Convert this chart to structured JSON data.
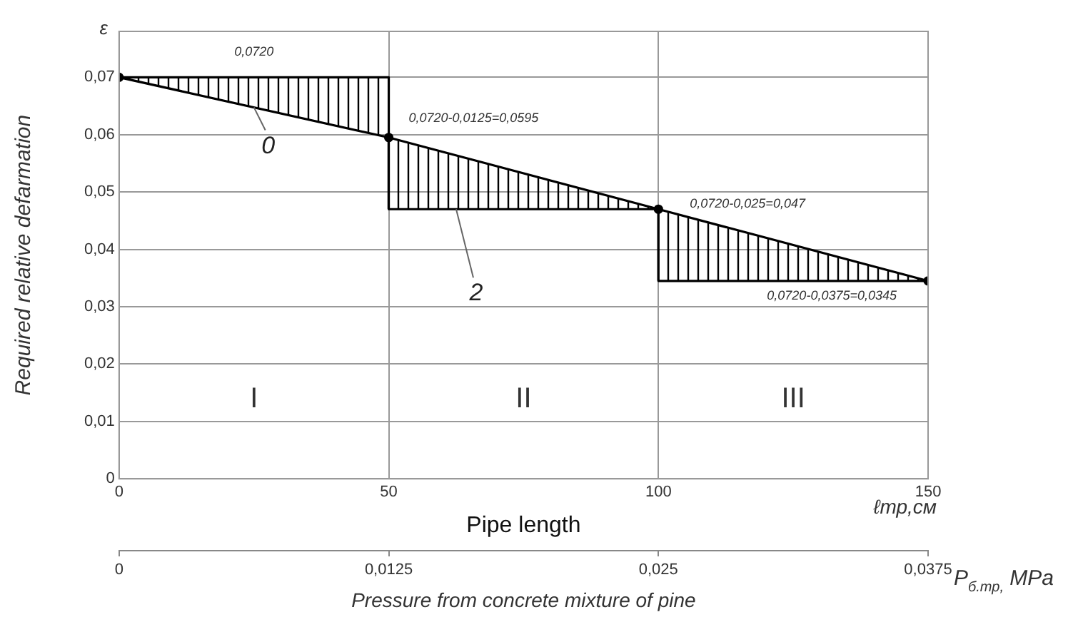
{
  "chart_data": {
    "type": "line",
    "ylabel": "Required relative defarmation",
    "xlabel": "Pipe length",
    "x2label": "Pressure from concrete mixture of pine",
    "xlim": [
      0,
      150
    ],
    "xticks": [
      0,
      50,
      100,
      150
    ],
    "x2lim": [
      0,
      0.0375
    ],
    "x2ticks": [
      0,
      {
        "value": 0.0125,
        "label": "0,0125"
      },
      {
        "value": 0.025,
        "label": "0,025"
      },
      {
        "value": 0.0375,
        "label": "0,0375"
      }
    ],
    "ylim": [
      0,
      0.078
    ],
    "yticks": [
      0,
      {
        "value": 0.01,
        "label": "0,01"
      },
      {
        "value": 0.02,
        "label": "0,02"
      },
      {
        "value": 0.03,
        "label": "0,03"
      },
      {
        "value": 0.04,
        "label": "0,04"
      },
      {
        "value": 0.05,
        "label": "0,05"
      },
      {
        "value": 0.06,
        "label": "0,06"
      },
      {
        "value": 0.07,
        "label": "0,07"
      }
    ],
    "grid": true,
    "series": [
      {
        "name": "0",
        "color": "#000000",
        "marker": "circle",
        "x": [
          0,
          50,
          100,
          150
        ],
        "values": [
          0.07,
          0.0595,
          0.047,
          0.0345
        ]
      },
      {
        "name": "2",
        "type": "step",
        "color": "#000000",
        "marker": "none",
        "x": [
          0,
          50,
          100,
          150
        ],
        "values": [
          0.07,
          0.047,
          0.0345,
          0.0345
        ]
      }
    ],
    "annotations": [
      "ε",
      "ℓтр,см",
      "P$_{б.тр,}$ MPa",
      "0,0720",
      {
        "text": "0,0720-0,0125=0,0595",
        "x": 50,
        "y": 0.0595
      },
      {
        "text": "0,0720-0,025=0,047",
        "x": 100,
        "y": 0.047
      },
      {
        "text": "0,0720-0,0375=0,0345",
        "x": 150,
        "y": 0.0345
      },
      "I",
      "II",
      "III"
    ]
  }
}
